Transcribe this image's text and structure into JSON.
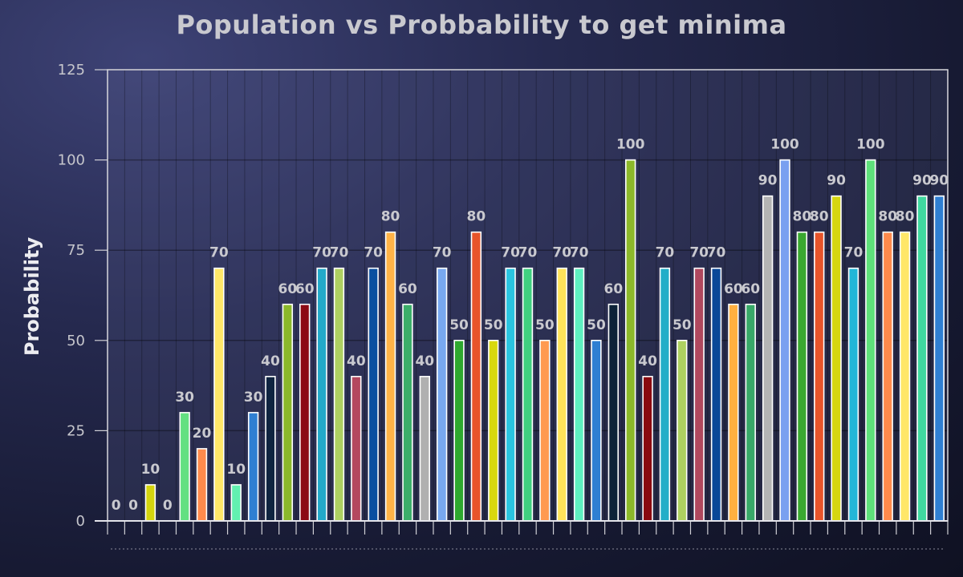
{
  "chart_data": {
    "type": "bar",
    "title": "Population vs Probbability to get minima",
    "xlabel": "",
    "ylabel": "Probability",
    "ylim": [
      0,
      125
    ],
    "yticks": [
      0,
      25,
      50,
      75,
      100,
      125
    ],
    "grid": true,
    "legend": "none",
    "data_labels": true,
    "values": [
      0,
      0,
      10,
      0,
      30,
      20,
      70,
      10,
      30,
      40,
      60,
      60,
      70,
      70,
      40,
      70,
      80,
      60,
      40,
      70,
      50,
      80,
      50,
      70,
      70,
      50,
      70,
      70,
      50,
      60,
      100,
      40,
      70,
      50,
      70,
      70,
      60,
      60,
      90,
      100,
      80,
      80,
      90,
      70,
      100,
      80,
      80,
      90,
      90
    ],
    "colors": [
      "#e8e84a",
      "#5ee07a",
      "#d4d40e",
      "#7a7aff",
      "#63e081",
      "#ff8a4c",
      "#ffe768",
      "#62f0b0",
      "#2f7fd2",
      "#0f2440",
      "#8bb82b",
      "#8c0a14",
      "#23a9c9",
      "#aed061",
      "#b4485f",
      "#0a4fa0",
      "#ffb347",
      "#3cae6a",
      "#b0b0b0",
      "#78a8f0",
      "#2ea82e",
      "#e8542a",
      "#d8d80e",
      "#2ac4e0",
      "#40d080",
      "#ff9a50",
      "#ffe35a",
      "#5ef0c0",
      "#2f7fd2",
      "#0d2238",
      "#8cb82a",
      "#8a0a10",
      "#22aec8",
      "#aed060",
      "#b0485e",
      "#0a4898",
      "#ffb040",
      "#38a868",
      "#b4b4b4",
      "#7aa0f0",
      "#3aa830",
      "#e8542a",
      "#d6d610",
      "#22b6d8",
      "#5ee07a",
      "#ff8a4c",
      "#ffe768",
      "#40d8a0",
      "#2f7fd2"
    ]
  }
}
